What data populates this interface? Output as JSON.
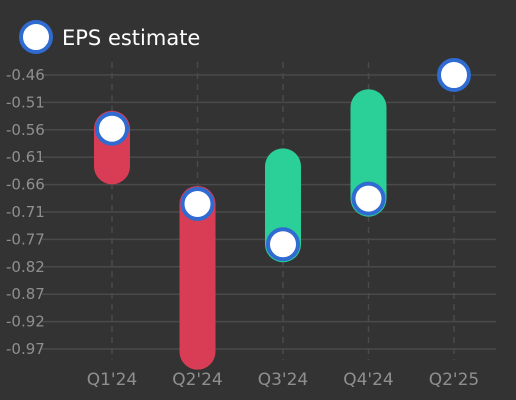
{
  "legend": {
    "label": "EPS estimate",
    "marker_fill": "#ffffff",
    "marker_stroke": "#2f6bd0"
  },
  "colors": {
    "background": "#333333",
    "grid": "#4a4a4a",
    "tick_text": "#8f8f8f",
    "miss": "#d83d55",
    "beat": "#2bcf98",
    "estimate_fill": "#ffffff",
    "estimate_stroke": "#2f6bd0"
  },
  "chart_data": {
    "type": "range-dot",
    "title": "",
    "xlabel": "",
    "ylabel": "",
    "categories": [
      "Q1'24",
      "Q2'24",
      "Q3'24",
      "Q4'24",
      "Q2'25"
    ],
    "y_ticks": [
      "-0.46",
      "-0.51",
      "-0.56",
      "-0.61",
      "-0.66",
      "-0.71",
      "-0.77",
      "-0.82",
      "-0.87",
      "-0.92",
      "-0.97"
    ],
    "ylim": [
      -0.985,
      -0.44
    ],
    "series": [
      {
        "name": "EPS estimate",
        "values": [
          -0.56,
          -0.7,
          -0.775,
          -0.69,
          -0.46
        ]
      }
    ],
    "actual": [
      -0.63,
      -0.975,
      -0.63,
      -0.52,
      null
    ],
    "legend_position": "top-left",
    "grid": true
  }
}
